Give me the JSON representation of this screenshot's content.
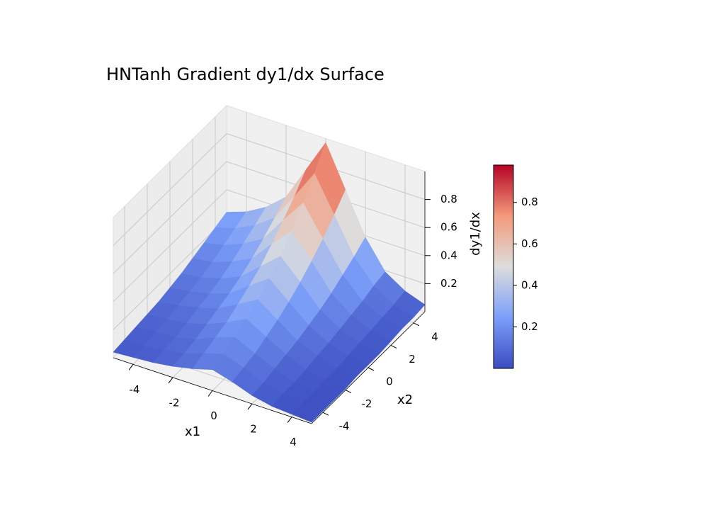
{
  "chart_data": {
    "type": "surface",
    "title": "HNTanh Gradient dy1/dx Surface",
    "x_label": "x1",
    "y_label": "x2",
    "z_label": "dy1/dx",
    "x": [
      -5,
      -4,
      -3,
      -2,
      -1,
      0,
      1,
      2,
      3,
      4,
      5
    ],
    "y": [
      -5,
      -4,
      -3,
      -2,
      -1,
      0,
      1,
      2,
      3,
      4,
      5
    ],
    "z": [
      [
        0.04,
        0.05,
        0.06,
        0.08,
        0.11,
        0.15,
        0.11,
        0.06,
        0.03,
        0.02,
        0.01
      ],
      [
        0.05,
        0.05,
        0.07,
        0.09,
        0.14,
        0.18,
        0.13,
        0.07,
        0.04,
        0.02,
        0.01
      ],
      [
        0.06,
        0.07,
        0.08,
        0.11,
        0.17,
        0.22,
        0.15,
        0.09,
        0.04,
        0.02,
        0.01
      ],
      [
        0.07,
        0.08,
        0.1,
        0.14,
        0.2,
        0.27,
        0.19,
        0.11,
        0.05,
        0.03,
        0.01
      ],
      [
        0.08,
        0.1,
        0.13,
        0.17,
        0.25,
        0.33,
        0.23,
        0.13,
        0.07,
        0.03,
        0.02
      ],
      [
        0.1,
        0.12,
        0.15,
        0.2,
        0.3,
        0.4,
        0.28,
        0.16,
        0.08,
        0.04,
        0.02
      ],
      [
        0.12,
        0.14,
        0.18,
        0.24,
        0.36,
        0.48,
        0.34,
        0.19,
        0.1,
        0.05,
        0.02
      ],
      [
        0.15,
        0.17,
        0.22,
        0.29,
        0.44,
        0.58,
        0.41,
        0.23,
        0.12,
        0.06,
        0.03
      ],
      [
        0.18,
        0.21,
        0.27,
        0.35,
        0.53,
        0.7,
        0.49,
        0.28,
        0.14,
        0.07,
        0.04
      ],
      [
        0.21,
        0.25,
        0.32,
        0.42,
        0.62,
        0.83,
        0.58,
        0.33,
        0.17,
        0.08,
        0.04
      ],
      [
        0.24,
        0.29,
        0.37,
        0.49,
        0.73,
        0.97,
        0.68,
        0.39,
        0.19,
        0.1,
        0.05
      ]
    ],
    "xlim": [
      -5,
      5
    ],
    "ylim": [
      -5,
      5
    ],
    "zlim": [
      0,
      1
    ],
    "xticks": [
      -4,
      -2,
      0,
      2,
      4
    ],
    "yticks": [
      -4,
      -2,
      0,
      2,
      4
    ],
    "zticks": [
      0.2,
      0.4,
      0.6,
      0.8
    ],
    "colormap": "coolwarm",
    "colormap_colors": [
      "#3b4cc0",
      "#7b9ff9",
      "#dddddd",
      "#f49a7b",
      "#b40426"
    ],
    "clim": [
      0,
      0.98
    ],
    "colorbar_ticks": [
      0.2,
      0.4,
      0.6,
      0.8
    ],
    "grid": true
  }
}
